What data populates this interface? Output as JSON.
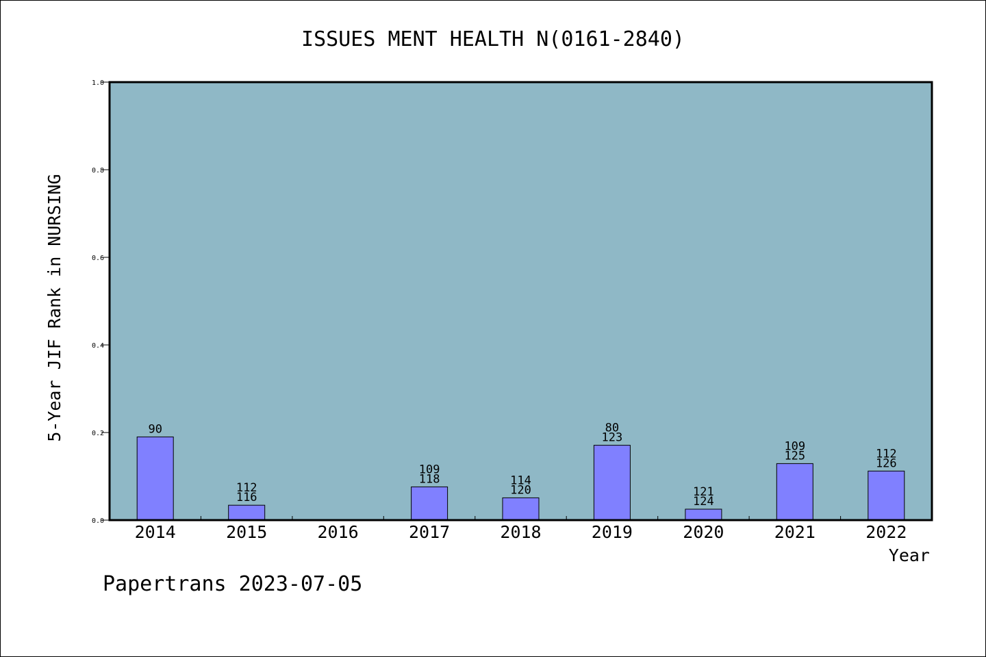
{
  "chart_data": {
    "type": "bar",
    "title": "ISSUES MENT HEALTH N(0161-2840)",
    "xlabel": "Year",
    "ylabel": "5-Year JIF Rank in NURSING",
    "categories": [
      "2014",
      "2015",
      "2016",
      "2017",
      "2018",
      "2019",
      "2020",
      "2021",
      "2022"
    ],
    "values": [
      0.19,
      0.034,
      null,
      0.076,
      0.051,
      0.171,
      0.025,
      0.129,
      0.112
    ],
    "bar_labels": [
      [
        "90"
      ],
      [
        "112",
        "116"
      ],
      [],
      [
        "109",
        "118"
      ],
      [
        "114",
        "120"
      ],
      [
        "80",
        "123"
      ],
      [
        "121",
        "124"
      ],
      [
        "109",
        "125"
      ],
      [
        "112",
        "126"
      ]
    ],
    "ylim": [
      0.0,
      1.0
    ],
    "yticks": [
      "0.0",
      "0.2",
      "0.4",
      "0.6",
      "0.8",
      "1.0"
    ],
    "grid": false,
    "colors": {
      "plot_background": "#8fb8c6",
      "bar_fill": "#8080ff",
      "axis": "#000000"
    }
  },
  "footer": "Papertrans 2023-07-05"
}
